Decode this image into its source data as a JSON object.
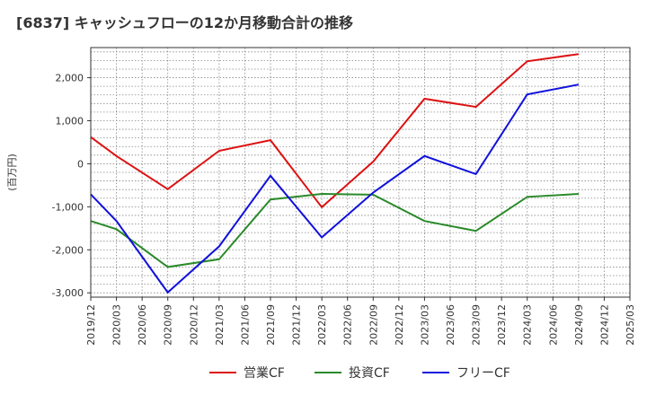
{
  "chart_data": {
    "type": "line",
    "title": "[6837]  キャッシュフローの12か月移動合計の推移",
    "ylabel": "(百万円)",
    "xlabel": "",
    "ylim": [
      -3100,
      2700
    ],
    "y_ticks": [
      -3000,
      -2000,
      -1000,
      0,
      1000,
      2000
    ],
    "y_tick_labels": [
      "-3,000",
      "-2,000",
      "-1,000",
      "0",
      "1,000",
      "2,000"
    ],
    "categories": [
      "2019/12",
      "2020/03",
      "2020/06",
      "2020/09",
      "2020/12",
      "2021/03",
      "2021/06",
      "2021/09",
      "2021/12",
      "2022/03",
      "2022/06",
      "2022/09",
      "2022/12",
      "2023/03",
      "2023/06",
      "2023/09",
      "2023/12",
      "2024/03",
      "2024/06",
      "2024/09",
      "2024/12",
      "2025/03"
    ],
    "grid": true,
    "legend_position": "bottom",
    "series": [
      {
        "name": "営業CF",
        "color": "#dd1111",
        "values": [
          620,
          180,
          null,
          -590,
          null,
          300,
          null,
          550,
          null,
          -1010,
          null,
          50,
          null,
          1510,
          null,
          1320,
          null,
          2380,
          null,
          2550,
          null,
          null
        ]
      },
      {
        "name": "投資CF",
        "color": "#2a8a2a",
        "values": [
          -1330,
          -1520,
          null,
          -2400,
          null,
          -2220,
          null,
          -830,
          null,
          -700,
          null,
          -720,
          null,
          -1330,
          null,
          -1560,
          null,
          -770,
          null,
          -700,
          null,
          null
        ]
      },
      {
        "name": "フリーCF",
        "color": "#1111dd",
        "values": [
          -710,
          -1330,
          null,
          -2990,
          null,
          -1920,
          null,
          -280,
          null,
          -1710,
          null,
          -670,
          null,
          180,
          null,
          -240,
          null,
          1610,
          null,
          1840,
          null,
          null
        ]
      }
    ]
  }
}
